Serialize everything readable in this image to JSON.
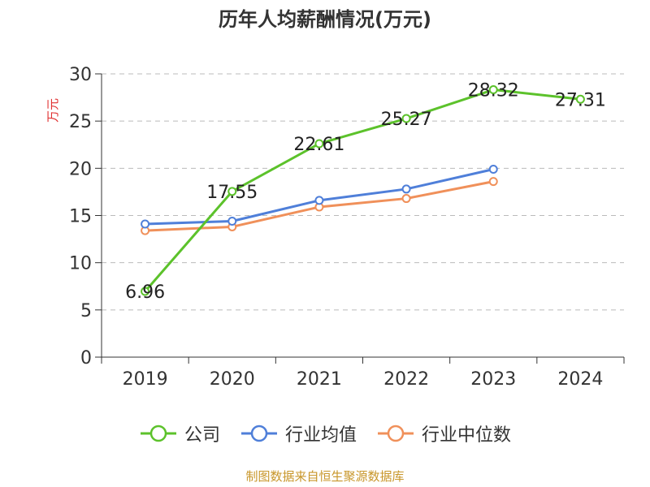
{
  "colors": {
    "company": "#5cc22b",
    "industry_avg": "#4f7fd9",
    "industry_median": "#f0905a",
    "axis": "#333333",
    "grid": "#bbbbbb",
    "ylabel": "#e03030",
    "source": "#c8962a"
  },
  "chart_data": {
    "type": "line",
    "title": "历年人均薪酬情况(万元)",
    "ylabel": "万元",
    "xlabel": "",
    "categories": [
      "2019",
      "2020",
      "2021",
      "2022",
      "2023",
      "2024"
    ],
    "ylim": [
      0,
      30
    ],
    "yticks": [
      0,
      5,
      10,
      15,
      20,
      25,
      30
    ],
    "grid": true,
    "legend_position": "bottom",
    "series": [
      {
        "name": "公司",
        "color_key": "company",
        "values": [
          6.96,
          17.55,
          22.61,
          25.27,
          28.32,
          27.31
        ],
        "labels": [
          "6.96",
          "17.55",
          "22.61",
          "25.27",
          "28.32",
          "27.31"
        ]
      },
      {
        "name": "行业均值",
        "color_key": "industry_avg",
        "values": [
          14.1,
          14.4,
          16.6,
          17.8,
          19.9,
          null
        ],
        "labels": []
      },
      {
        "name": "行业中位数",
        "color_key": "industry_median",
        "values": [
          13.4,
          13.8,
          15.9,
          16.8,
          18.6,
          null
        ],
        "labels": []
      }
    ]
  },
  "source": "制图数据来自恒生聚源数据库"
}
